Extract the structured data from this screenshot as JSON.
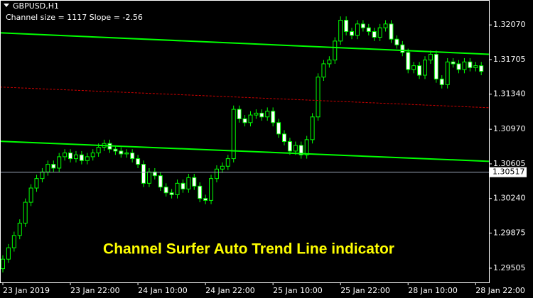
{
  "chart_data": {
    "type": "candlestick",
    "symbol": "GBPUSD,H1",
    "info": "Channel size = 1117 Slope = -2.56",
    "title": "Channel Surfer Auto Trend Line indicator",
    "up_color": "#000000",
    "down_color": "#ffffff",
    "wick_color": "#00ff00",
    "categories": [
      "23 Jan 2019",
      null,
      null,
      null,
      null,
      null,
      null,
      null,
      null,
      null,
      null,
      null,
      "23 Jan 22:00",
      null,
      null,
      null,
      null,
      null,
      null,
      null,
      null,
      null,
      null,
      null,
      "24 Jan 10:00",
      null,
      null,
      null,
      null,
      null,
      null,
      null,
      null,
      null,
      null,
      null,
      "24 Jan 22:00",
      null,
      null,
      null,
      null,
      null,
      null,
      null,
      null,
      null,
      null,
      null,
      "25 Jan 10:00",
      null,
      null,
      null,
      null,
      null,
      null,
      null,
      null,
      null,
      null,
      null,
      "25 Jan 22:00",
      null,
      null,
      null,
      null,
      null,
      null,
      null,
      null,
      null,
      null,
      null,
      "28 Jan 10:00",
      null,
      null,
      null,
      null,
      null,
      null,
      null,
      null,
      null,
      null,
      null,
      "28 Jan 22:00",
      null
    ],
    "open": [
      1.295,
      1.296,
      1.2972,
      1.2985,
      1.2998,
      1.302,
      1.3035,
      1.3045,
      1.3052,
      1.306,
      1.3056,
      1.3068,
      1.3072,
      1.3066,
      1.307,
      1.3064,
      1.3068,
      1.3072,
      1.3078,
      1.3082,
      1.3076,
      1.3074,
      1.3071,
      1.3072,
      1.3066,
      1.306,
      1.304,
      1.3052,
      1.3048,
      1.3036,
      1.303,
      1.3028,
      1.304,
      1.3034,
      1.3046,
      1.3037,
      1.3024,
      1.3022,
      1.3045,
      1.3055,
      1.3058,
      1.3066,
      1.3118,
      1.3108,
      1.3104,
      1.3112,
      1.3114,
      1.311,
      1.3116,
      1.3104,
      1.3092,
      1.3084,
      1.3074,
      1.308,
      1.307,
      1.3086,
      1.311,
      1.3152,
      1.3166,
      1.317,
      1.319,
      1.3212,
      1.32,
      1.3196,
      1.3208,
      1.3204,
      1.32,
      1.3194,
      1.3204,
      1.3208,
      1.3192,
      1.3186,
      1.3178,
      1.316,
      1.3164,
      1.3154,
      1.317,
      1.3176,
      1.315,
      1.3144,
      1.3168,
      1.3166,
      1.316,
      1.3168,
      1.3162,
      1.3164
    ],
    "high": [
      1.2964,
      1.2976,
      1.2989,
      1.3002,
      1.3024,
      1.3039,
      1.3049,
      1.3056,
      1.3064,
      1.3064,
      1.3072,
      1.3076,
      1.3076,
      1.3074,
      1.3074,
      1.3072,
      1.3076,
      1.3082,
      1.3086,
      1.3086,
      1.308,
      1.3078,
      1.3076,
      1.3076,
      1.307,
      1.3064,
      1.3056,
      1.3056,
      1.3052,
      1.304,
      1.3034,
      1.3044,
      1.3044,
      1.305,
      1.305,
      1.3041,
      1.3028,
      1.3049,
      1.3059,
      1.3062,
      1.307,
      1.3122,
      1.3122,
      1.3112,
      1.3116,
      1.3118,
      1.3118,
      1.312,
      1.312,
      1.3108,
      1.3096,
      1.3088,
      1.3084,
      1.3084,
      1.309,
      1.3114,
      1.3156,
      1.317,
      1.3174,
      1.3194,
      1.3216,
      1.3216,
      1.3204,
      1.3212,
      1.3212,
      1.3208,
      1.3204,
      1.3208,
      1.3212,
      1.3212,
      1.3196,
      1.319,
      1.3182,
      1.3168,
      1.3168,
      1.3174,
      1.318,
      1.318,
      1.3154,
      1.3172,
      1.3172,
      1.317,
      1.3172,
      1.3172,
      1.3168,
      1.3168
    ],
    "low": [
      1.2946,
      1.2956,
      1.2968,
      1.2981,
      1.2994,
      1.3016,
      1.3031,
      1.3041,
      1.3048,
      1.3052,
      1.3052,
      1.3064,
      1.3062,
      1.3062,
      1.306,
      1.306,
      1.3064,
      1.3068,
      1.3074,
      1.3072,
      1.307,
      1.3067,
      1.3067,
      1.3062,
      1.3056,
      1.3036,
      1.3036,
      1.3044,
      1.3032,
      1.3026,
      1.3024,
      1.3024,
      1.303,
      1.303,
      1.3033,
      1.302,
      1.3018,
      1.3018,
      1.3041,
      1.3051,
      1.3054,
      1.3062,
      1.3104,
      1.31,
      1.31,
      1.3108,
      1.3106,
      1.3106,
      1.31,
      1.3088,
      1.308,
      1.307,
      1.307,
      1.3066,
      1.3066,
      1.3082,
      1.3106,
      1.3148,
      1.3162,
      1.3166,
      1.3186,
      1.3196,
      1.3192,
      1.3192,
      1.32,
      1.3196,
      1.319,
      1.319,
      1.32,
      1.3188,
      1.3182,
      1.3174,
      1.3156,
      1.3156,
      1.315,
      1.315,
      1.3166,
      1.3146,
      1.314,
      1.314,
      1.3162,
      1.3156,
      1.3156,
      1.3158,
      1.3158,
      1.3154
    ],
    "close": [
      1.296,
      1.2972,
      1.2985,
      1.2998,
      1.302,
      1.3035,
      1.3045,
      1.3052,
      1.306,
      1.3056,
      1.3068,
      1.3072,
      1.3066,
      1.307,
      1.3064,
      1.3068,
      1.3072,
      1.3078,
      1.3082,
      1.3076,
      1.3074,
      1.3071,
      1.3072,
      1.3066,
      1.306,
      1.304,
      1.3052,
      1.3048,
      1.3036,
      1.303,
      1.3028,
      1.304,
      1.3034,
      1.3046,
      1.3037,
      1.3024,
      1.3022,
      1.3045,
      1.3055,
      1.3058,
      1.3066,
      1.3118,
      1.3108,
      1.3104,
      1.3112,
      1.3114,
      1.311,
      1.3116,
      1.3104,
      1.3092,
      1.3084,
      1.3074,
      1.308,
      1.307,
      1.3086,
      1.311,
      1.3152,
      1.3166,
      1.317,
      1.319,
      1.3212,
      1.32,
      1.3196,
      1.3208,
      1.3204,
      1.32,
      1.3194,
      1.3204,
      1.3208,
      1.3192,
      1.3186,
      1.3178,
      1.316,
      1.3164,
      1.3154,
      1.317,
      1.3176,
      1.315,
      1.3144,
      1.3168,
      1.3166,
      1.316,
      1.3168,
      1.3162,
      1.3164,
      1.3158
    ],
    "lines": [
      {
        "color": "#00ff00",
        "dash": false,
        "values": [
          1.31987,
          1.31761
        ]
      },
      {
        "color": "#cc0000",
        "dash": true,
        "values": [
          1.31415,
          1.31197
        ]
      },
      {
        "color": "#00ff00",
        "dash": false,
        "values": [
          1.30843,
          1.30632
        ]
      }
    ],
    "current_price": 1.30517,
    "ylim": [
      1.29355,
      1.32333
    ],
    "yticks": [
      {
        "value": 1.3207,
        "label": "1.32070"
      },
      1.31705,
      {
        "value": 1.3134,
        "label": "1.31340"
      },
      {
        "value": 1.3097,
        "label": "1.30970"
      },
      1.30605,
      {
        "value": 1.3024,
        "label": "1.30240"
      },
      1.29875,
      1.29505
    ]
  }
}
